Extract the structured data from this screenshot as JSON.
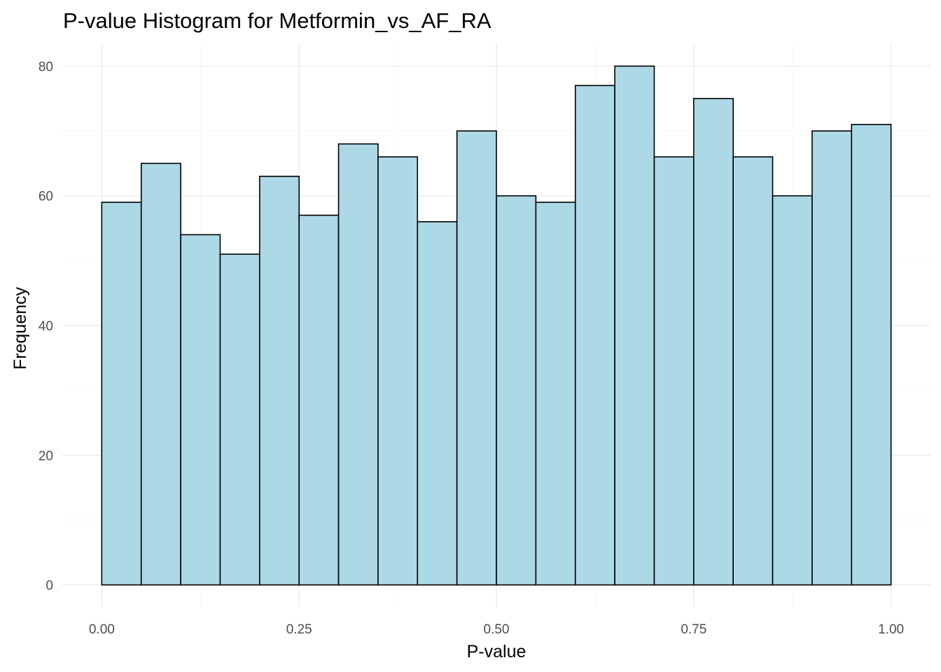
{
  "chart_data": {
    "type": "bar",
    "title": "P-value Histogram for Metformin_vs_AF_RA",
    "xlabel": "P-value",
    "ylabel": "Frequency",
    "bin_width": 0.05,
    "bin_starts": [
      0.0,
      0.05,
      0.1,
      0.15,
      0.2,
      0.25,
      0.3,
      0.35,
      0.4,
      0.45,
      0.5,
      0.55,
      0.6,
      0.65,
      0.7,
      0.75,
      0.8,
      0.85,
      0.9,
      0.95
    ],
    "values": [
      59,
      65,
      54,
      51,
      63,
      57,
      68,
      66,
      56,
      70,
      60,
      59,
      77,
      80,
      66,
      75,
      66,
      60,
      70,
      71
    ],
    "xlim": [
      -0.05,
      1.05
    ],
    "ylim": [
      -3.5,
      83.5
    ],
    "x_ticks": [
      0.0,
      0.25,
      0.5,
      0.75,
      1.0
    ],
    "x_tick_labels": [
      "0.00",
      "0.25",
      "0.50",
      "0.75",
      "1.00"
    ],
    "y_ticks": [
      0,
      20,
      40,
      60,
      80
    ],
    "y_tick_labels": [
      "0",
      "20",
      "40",
      "60",
      "80"
    ],
    "grid": true,
    "bar_fill": "#add8e6",
    "bar_outline": "#000000"
  }
}
